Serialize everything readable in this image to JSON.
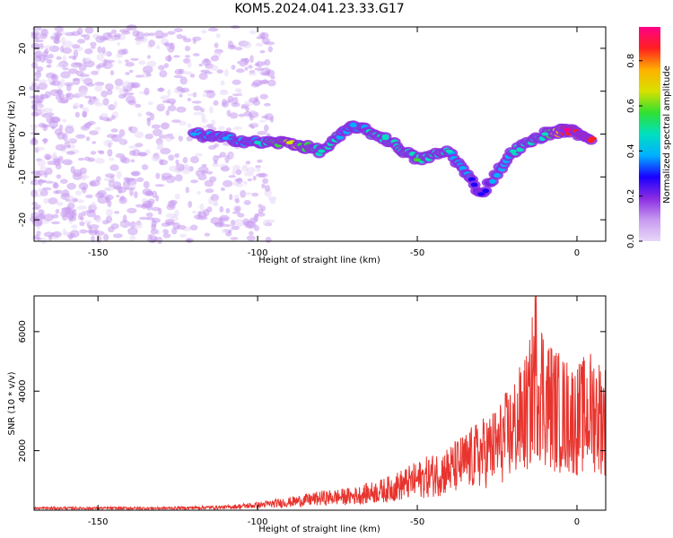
{
  "title": "KOM5.2024.041.23.33.G17",
  "colors": {
    "snr_line": "#e8342e",
    "axis": "#000000",
    "background": "#ffffff",
    "colormap": [
      "#e8d8f8",
      "#c79af0",
      "#8a2be2",
      "#1a00ff",
      "#00b0ff",
      "#00e0c0",
      "#30e030",
      "#d8e000",
      "#ffb000",
      "#ff2020",
      "#ff0088"
    ]
  },
  "chart_data": [
    {
      "type": "heatmap",
      "title": "KOM5.2024.041.23.33.G17",
      "xlabel": "Height of straight line (km)",
      "ylabel": "Frequency (Hz)",
      "xlim": [
        -170,
        9
      ],
      "ylim": [
        -25,
        25
      ],
      "x_ticks": [
        -150,
        -100,
        -50,
        0
      ],
      "y_ticks": [
        -20,
        -10,
        0,
        10,
        20
      ],
      "colorbar": {
        "label": "Normalized spectral amplitude",
        "range": [
          0,
          0.95
        ],
        "ticks": [
          0.0,
          0.2,
          0.4,
          0.6,
          0.8
        ]
      },
      "description_points": [
        {
          "x": -120,
          "y": 0,
          "amp": 0.35
        },
        {
          "x": -110,
          "y": -1,
          "amp": 0.4
        },
        {
          "x": -100,
          "y": -2,
          "amp": 0.45
        },
        {
          "x": -90,
          "y": -2,
          "amp": 0.7
        },
        {
          "x": -80,
          "y": -4,
          "amp": 0.5
        },
        {
          "x": -70,
          "y": 2,
          "amp": 0.4
        },
        {
          "x": -60,
          "y": -1,
          "amp": 0.5
        },
        {
          "x": -50,
          "y": -6,
          "amp": 0.55
        },
        {
          "x": -40,
          "y": -4,
          "amp": 0.45
        },
        {
          "x": -30,
          "y": -14,
          "amp": 0.3
        },
        {
          "x": -20,
          "y": -4,
          "amp": 0.45
        },
        {
          "x": -10,
          "y": 0,
          "amp": 0.5
        },
        {
          "x": -3,
          "y": 1,
          "amp": 0.95
        },
        {
          "x": 5,
          "y": -1,
          "amp": 0.9
        }
      ]
    },
    {
      "type": "line",
      "xlabel": "Height of straight line (km)",
      "ylabel": "SNR (10 * v/v)",
      "xlim": [
        -170,
        9
      ],
      "ylim": [
        0,
        7200
      ],
      "x_ticks": [
        -150,
        -100,
        -50,
        0
      ],
      "y_ticks": [
        2000,
        4000,
        6000
      ],
      "series": [
        {
          "x": [
            -170,
            -150,
            -130,
            -110,
            -100,
            -90,
            -80,
            -70,
            -60,
            -50,
            -40,
            -30,
            -25,
            -20,
            -15,
            -13,
            -10,
            -5,
            0,
            5,
            9
          ],
          "values": [
            100,
            100,
            100,
            150,
            250,
            400,
            600,
            700,
            1000,
            1500,
            2000,
            2800,
            3200,
            4000,
            5000,
            7200,
            5500,
            4800,
            4500,
            5000,
            4500
          ]
        }
      ]
    }
  ]
}
